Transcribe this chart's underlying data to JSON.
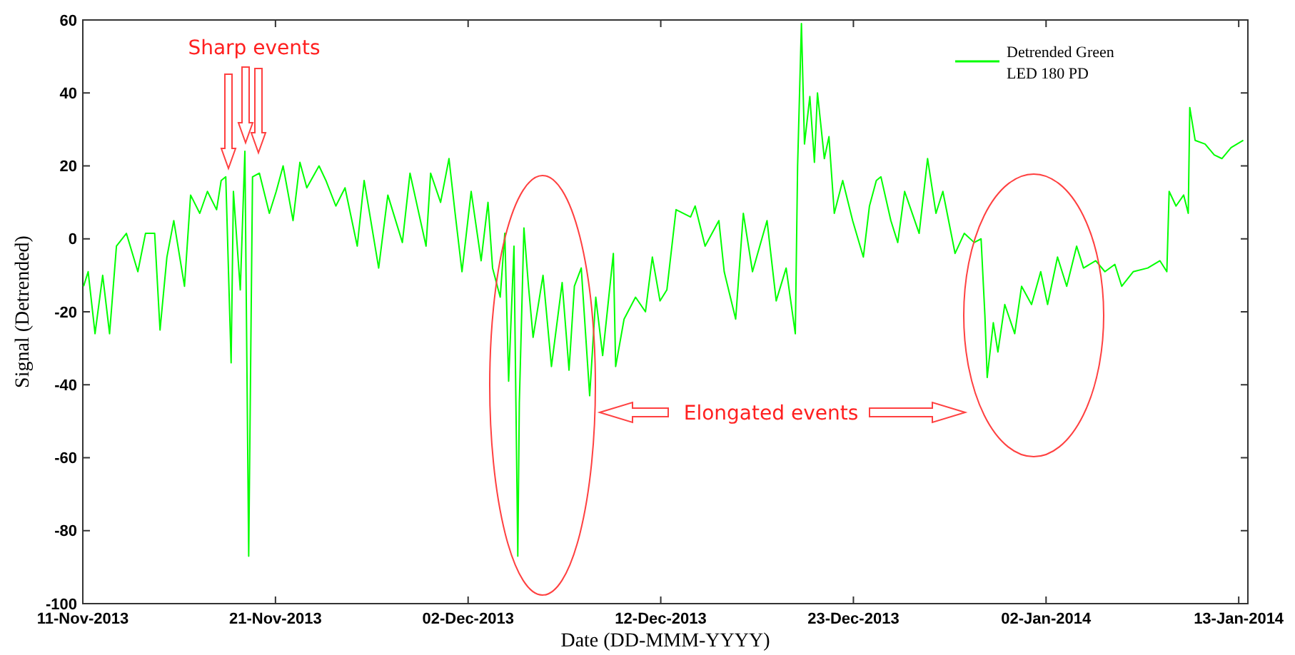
{
  "chart_data": {
    "type": "line",
    "xlabel": "Date (DD-MMM-YYYY)",
    "ylabel": "Signal (Detrended)",
    "xlim": [
      "2013-11-11T00:00",
      "2014-01-13T12:00"
    ],
    "xticks": [
      {
        "value": "2013-11-11T00:00",
        "label": "11-Nov-2013"
      },
      {
        "value": "2013-11-21T12:00",
        "label": "21-Nov-2013"
      },
      {
        "value": "2013-12-02T00:00",
        "label": "02-Dec-2013"
      },
      {
        "value": "2013-12-12T12:00",
        "label": "12-Dec-2013"
      },
      {
        "value": "2013-12-23T00:00",
        "label": "23-Dec-2013"
      },
      {
        "value": "2014-01-02T12:00",
        "label": "02-Jan-2014"
      },
      {
        "value": "2014-01-13T00:00",
        "label": "13-Jan-2014"
      }
    ],
    "ylim": [
      -100,
      60
    ],
    "yticks": [
      -100,
      -80,
      -60,
      -40,
      -20,
      0,
      20,
      40,
      60
    ],
    "x": [
      "2013-11-11T01:00",
      "2013-11-11T07:00",
      "2013-11-11T16:00",
      "2013-11-12T02:00",
      "2013-11-12T11:00",
      "2013-11-12T20:00",
      "2013-11-13T09:00",
      "2013-11-14T00:00",
      "2013-11-14T10:00",
      "2013-11-14T22:00",
      "2013-11-15T05:00",
      "2013-11-15T14:00",
      "2013-11-15T23:00",
      "2013-11-16T13:00",
      "2013-11-16T21:00",
      "2013-11-17T09:00",
      "2013-11-17T19:00",
      "2013-11-18T07:00",
      "2013-11-18T13:00",
      "2013-11-18T19:00",
      "2013-11-19T02:00",
      "2013-11-19T05:00",
      "2013-11-19T14:00",
      "2013-11-19T20:00",
      "2013-11-20T01:00",
      "2013-11-20T06:00",
      "2013-11-20T15:00",
      "2013-11-21T04:00",
      "2013-11-21T13:00",
      "2013-11-21T22:00",
      "2013-11-22T11:00",
      "2013-11-22T20:00",
      "2013-11-23T05:00",
      "2013-11-23T21:00",
      "2013-11-24T06:00",
      "2013-11-24T19:00",
      "2013-11-25T07:00",
      "2013-11-25T23:00",
      "2013-11-26T08:00",
      "2013-11-27T03:00",
      "2013-11-27T15:00",
      "2013-11-28T10:00",
      "2013-11-28T20:00",
      "2013-11-29T17:00",
      "2013-11-29T23:00",
      "2013-11-30T12:00",
      "2013-11-30T23:00",
      "2013-12-01T07:00",
      "2013-12-01T16:00",
      "2013-12-02T04:00",
      "2013-12-02T17:00",
      "2013-12-03T02:00",
      "2013-12-03T08:00",
      "2013-12-03T18:00",
      "2013-12-04T00:00",
      "2013-12-04T05:00",
      "2013-12-04T12:00",
      "2013-12-04T17:00",
      "2013-12-04T19:00",
      "2013-12-05T01:00",
      "2013-12-05T07:00",
      "2013-12-05T13:00",
      "2013-12-06T02:00",
      "2013-12-06T13:00",
      "2013-12-07T03:00",
      "2013-12-07T12:00",
      "2013-12-07T19:00",
      "2013-12-08T04:00",
      "2013-12-08T15:00",
      "2013-12-08T23:00",
      "2013-12-09T08:00",
      "2013-12-09T22:00",
      "2013-12-10T01:00",
      "2013-12-10T12:00",
      "2013-12-11T03:00",
      "2013-12-11T16:00",
      "2013-12-12T01:00",
      "2013-12-12T11:00",
      "2013-12-12T20:00",
      "2013-12-13T08:00",
      "2013-12-14T03:00",
      "2013-12-14T09:00",
      "2013-12-14T22:00",
      "2013-12-15T16:00",
      "2013-12-15T23:00",
      "2013-12-16T14:00",
      "2013-12-17T00:00",
      "2013-12-17T12:00",
      "2013-12-18T07:00",
      "2013-12-18T19:00",
      "2013-12-19T08:00",
      "2013-12-19T20:00",
      "2013-12-19T23:00",
      "2013-12-20T04:00",
      "2013-12-20T08:00",
      "2013-12-20T15:00",
      "2013-12-20T21:00",
      "2013-12-21T01:00",
      "2013-12-21T10:00",
      "2013-12-21T16:00",
      "2013-12-21T23:00",
      "2013-12-22T10:00",
      "2013-12-22T23:00",
      "2013-12-23T13:00",
      "2013-12-23T21:00",
      "2013-12-24T06:00",
      "2013-12-24T12:00",
      "2013-12-25T01:00",
      "2013-12-25T10:00",
      "2013-12-25T19:00",
      "2013-12-26T14:00",
      "2013-12-27T01:00",
      "2013-12-27T12:00",
      "2013-12-27T21:00",
      "2013-12-28T13:00",
      "2013-12-29T01:00",
      "2013-12-29T14:00",
      "2013-12-29T23:00",
      "2013-12-30T04:00",
      "2013-12-30T07:00",
      "2013-12-30T15:00",
      "2013-12-30T21:00",
      "2013-12-31T06:00",
      "2013-12-31T19:00",
      "2014-01-01T04:00",
      "2014-01-01T17:00",
      "2014-01-02T05:00",
      "2014-01-02T14:00",
      "2014-01-03T03:00",
      "2014-01-03T15:00",
      "2014-01-04T04:00",
      "2014-01-04T13:00",
      "2014-01-05T05:00",
      "2014-01-05T17:00",
      "2014-01-06T06:00",
      "2014-01-06T15:00",
      "2014-01-07T06:00",
      "2014-01-08T01:00",
      "2014-01-08T17:00",
      "2014-01-09T02:00",
      "2014-01-09T05:00",
      "2014-01-09T14:00",
      "2014-01-10T00:00",
      "2014-01-10T06:00",
      "2014-01-10T08:00",
      "2014-01-10T15:00",
      "2014-01-11T04:00",
      "2014-01-11T16:00",
      "2014-01-12T02:00",
      "2014-01-12T14:00",
      "2014-01-13T06:00"
    ],
    "series": [
      {
        "name": "Detrended Green LED 180 PD",
        "color": "#00ff00",
        "values": [
          -13,
          -9,
          -26,
          -10,
          -26,
          -2,
          1.5,
          -9,
          1.5,
          1.5,
          -25,
          -5,
          5,
          -13,
          12,
          7,
          13,
          8,
          16,
          17,
          -34,
          13,
          -14,
          24,
          -87,
          17,
          18,
          7,
          13,
          20,
          5,
          21,
          14,
          20,
          16,
          9,
          14,
          -2,
          16,
          -8,
          12,
          -1,
          18,
          -2,
          18,
          10,
          22,
          7,
          -9,
          13,
          -6,
          10,
          -8,
          -16,
          1.5,
          -39,
          -2,
          -87,
          -45,
          3,
          -13,
          -27,
          -10,
          -35,
          -12,
          -36,
          -13,
          -8,
          -43,
          -16,
          -32,
          -4,
          -35,
          -22,
          -16,
          -20,
          -5,
          -17,
          -14,
          8,
          6,
          9,
          -2,
          5,
          -9,
          -22,
          7,
          -9,
          5,
          -17,
          -8,
          -26,
          20,
          59,
          26,
          39,
          21,
          40,
          22,
          28,
          7,
          16,
          5,
          -5,
          9,
          16,
          17,
          5,
          -1,
          13,
          1.5,
          22,
          7,
          13,
          -4,
          1.5,
          -1,
          0,
          -21,
          -38,
          -23,
          -31,
          -18,
          -26,
          -13,
          -18,
          -9,
          -18,
          -5,
          -13,
          -2,
          -8,
          -6,
          -9,
          -7,
          -13,
          -9,
          -8,
          -6,
          -9,
          13,
          9,
          12,
          7,
          36,
          27,
          26,
          23,
          22,
          25,
          27
        ]
      }
    ],
    "legend": "top right",
    "marker": "none",
    "line_style": "solid",
    "grid": false,
    "annotations": [
      "Sharp events",
      "Elongated events"
    ]
  }
}
